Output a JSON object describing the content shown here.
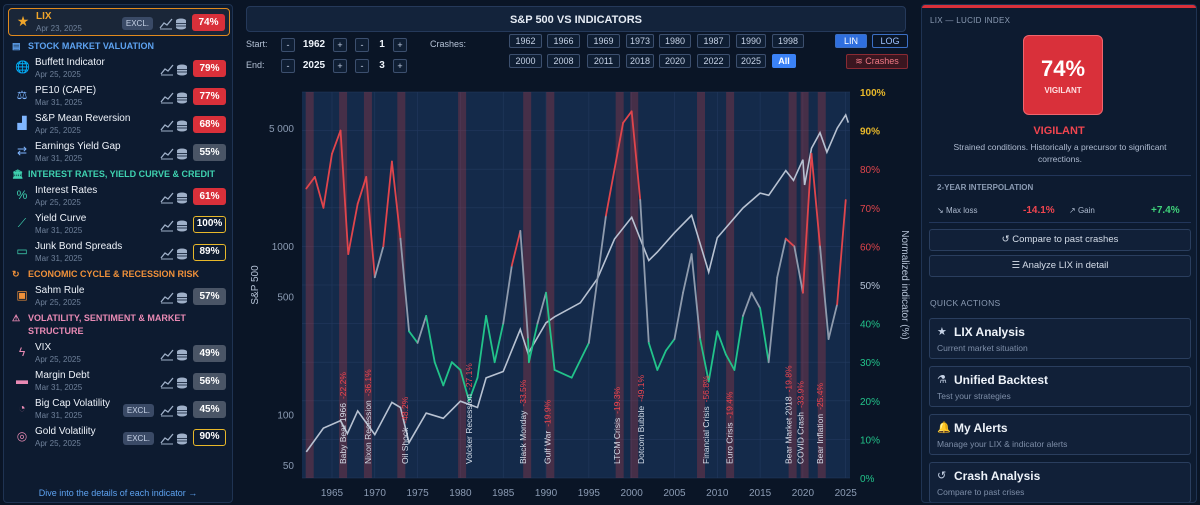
{
  "sidebar": {
    "lix": {
      "name": "LIX",
      "date": "Apr 23, 2025",
      "excl": "EXCL.",
      "value": "74%",
      "color": "red"
    },
    "sections": [
      {
        "title": "STOCK MARKET VALUATION",
        "color": "#5da2f0",
        "icon": "chart-bar-icon",
        "items": [
          {
            "name": "Buffett Indicator",
            "date": "Apr 25, 2025",
            "value": "79%",
            "color": "red",
            "icon": "globe-icon"
          },
          {
            "name": "PE10 (CAPE)",
            "date": "Mar 31, 2025",
            "value": "77%",
            "color": "red",
            "icon": "scale-icon"
          },
          {
            "name": "S&P Mean Reversion",
            "date": "Apr 25, 2025",
            "value": "68%",
            "color": "red",
            "icon": "area-chart-icon"
          },
          {
            "name": "Earnings Yield Gap",
            "date": "Mar 31, 2025",
            "value": "55%",
            "color": "gray",
            "icon": "arrows-swap-icon"
          }
        ]
      },
      {
        "title": "INTEREST RATES, YIELD CURVE & CREDIT",
        "color": "#3fd2b0",
        "icon": "bank-icon",
        "items": [
          {
            "name": "Interest Rates",
            "date": "Apr 25, 2025",
            "value": "61%",
            "color": "red",
            "icon": "percent-icon"
          },
          {
            "name": "Yield Curve",
            "date": "Mar 31, 2025",
            "value": "100%",
            "color": "yel",
            "icon": "line-chart-icon"
          },
          {
            "name": "Junk Bond Spreads",
            "date": "Mar 31, 2025",
            "value": "89%",
            "color": "yel",
            "icon": "money-icon"
          }
        ]
      },
      {
        "title": "ECONOMIC CYCLE & RECESSION RISK",
        "color": "#f0913a",
        "icon": "cycle-icon",
        "items": [
          {
            "name": "Sahm Rule",
            "date": "Apr 25, 2025",
            "value": "57%",
            "color": "gray",
            "icon": "briefcase-icon"
          }
        ]
      },
      {
        "title": "VOLATILITY, SENTIMENT & MARKET",
        "title2": "STRUCTURE",
        "color": "#e88ab4",
        "icon": "warning-icon",
        "items": [
          {
            "name": "VIX",
            "date": "Apr 25, 2025",
            "value": "49%",
            "color": "gray",
            "icon": "bolt-icon"
          },
          {
            "name": "Margin Debt",
            "date": "Mar 31, 2025",
            "value": "56%",
            "color": "gray",
            "icon": "credit-card-icon"
          },
          {
            "name": "Big Cap Volatility",
            "date": "Mar 31, 2025",
            "value": "45%",
            "color": "gray",
            "icon": "pie-icon",
            "excl": "EXCL."
          },
          {
            "name": "Gold Volatility",
            "date": "Apr 25, 2025",
            "value": "90%",
            "color": "yel",
            "icon": "coins-icon",
            "excl": "EXCL."
          }
        ]
      }
    ],
    "footer_link": "Dive into the details of each indicator →"
  },
  "chart_controls": {
    "title": "S&P 500 VS INDICATORS",
    "start_label": "Start:",
    "end_label": "End:",
    "start_year": "1962",
    "start_month": "1",
    "end_year": "2025",
    "end_month": "3",
    "crashes_label": "Crashes:",
    "crash_years_row1": [
      "1962",
      "1966",
      "1969",
      "1973",
      "1980",
      "1987",
      "1990",
      "1998"
    ],
    "crash_years_row2": [
      "2000",
      "2008",
      "2011",
      "2018",
      "2020",
      "2022",
      "2025",
      "All"
    ],
    "lin": "LIN",
    "log": "LOG",
    "crashes_button": "Crashes"
  },
  "chart_data": {
    "type": "line",
    "ylabel": "S&P 500",
    "y2label": "Normalized indicator (%)",
    "x_ticks": [
      "1965",
      "1970",
      "1975",
      "1980",
      "1985",
      "1990",
      "1995",
      "2000",
      "2005",
      "2010",
      "2015",
      "2020",
      "2025"
    ],
    "y_ticks_log": [
      "50",
      "100",
      "500",
      "1000",
      "5 000"
    ],
    "y2_ticks": [
      "0%",
      "10%",
      "20%",
      "30%",
      "40%",
      "50%",
      "60%",
      "70%",
      "80%",
      "90%",
      "100%"
    ],
    "xlim": [
      1961.5,
      2025.5
    ],
    "ylim_log": [
      42,
      8200
    ],
    "y2lim": [
      0,
      100
    ],
    "series": [
      {
        "values": [
          [
            1962,
            60
          ],
          [
            1964,
            83
          ],
          [
            1966,
            92
          ],
          [
            1966.8,
            77
          ],
          [
            1968,
            105
          ],
          [
            1970,
            76
          ],
          [
            1972,
            118
          ],
          [
            1973,
            110
          ],
          [
            1974,
            68
          ],
          [
            1976,
            102
          ],
          [
            1978,
            95
          ],
          [
            1980,
            120
          ],
          [
            1982,
            110
          ],
          [
            1983,
            165
          ],
          [
            1985,
            180
          ],
          [
            1987,
            320
          ],
          [
            1987.9,
            230
          ],
          [
            1990,
            350
          ],
          [
            1991,
            380
          ],
          [
            1994,
            460
          ],
          [
            1996,
            640
          ],
          [
            1998,
            1100
          ],
          [
            2000,
            1480
          ],
          [
            2002,
            820
          ],
          [
            2003,
            920
          ],
          [
            2005,
            1200
          ],
          [
            2007,
            1520
          ],
          [
            2009,
            700
          ],
          [
            2010,
            1120
          ],
          [
            2011,
            1280
          ],
          [
            2013,
            1680
          ],
          [
            2015,
            2060
          ],
          [
            2016,
            2000
          ],
          [
            2018,
            2800
          ],
          [
            2018.9,
            2450
          ],
          [
            2020,
            3250
          ],
          [
            2020.2,
            2300
          ],
          [
            2021,
            3800
          ],
          [
            2022,
            4700
          ],
          [
            2022.8,
            3600
          ],
          [
            2024,
            5000
          ],
          [
            2025,
            6000
          ],
          [
            2025.3,
            5400
          ]
        ]
      },
      {
        "values": [
          [
            1962,
            75
          ],
          [
            1963,
            78
          ],
          [
            1964,
            70
          ],
          [
            1965,
            84
          ],
          [
            1966,
            90
          ],
          [
            1966.9,
            58
          ],
          [
            1968,
            71
          ],
          [
            1969,
            78
          ],
          [
            1970,
            52
          ],
          [
            1971,
            60
          ],
          [
            1972,
            82
          ],
          [
            1973,
            62
          ],
          [
            1974,
            38
          ],
          [
            1975,
            35
          ],
          [
            1976,
            42
          ],
          [
            1977,
            30
          ],
          [
            1978,
            24
          ],
          [
            1979,
            30
          ],
          [
            1980,
            28
          ],
          [
            1981,
            20
          ],
          [
            1982,
            26
          ],
          [
            1983,
            42
          ],
          [
            1984,
            30
          ],
          [
            1985,
            40
          ],
          [
            1986,
            55
          ],
          [
            1987,
            64
          ],
          [
            1987.9,
            36
          ],
          [
            1988,
            30
          ],
          [
            1989,
            40
          ],
          [
            1990,
            48
          ],
          [
            1991,
            28
          ],
          [
            1993,
            26
          ],
          [
            1995,
            35
          ],
          [
            1997,
            68
          ],
          [
            1998,
            80
          ],
          [
            1999,
            92
          ],
          [
            2000,
            95
          ],
          [
            2001,
            72
          ],
          [
            2002,
            35
          ],
          [
            2003,
            28
          ],
          [
            2004,
            33
          ],
          [
            2005,
            36
          ],
          [
            2006,
            48
          ],
          [
            2007,
            58
          ],
          [
            2008,
            36
          ],
          [
            2009,
            25
          ],
          [
            2010,
            38
          ],
          [
            2011,
            32
          ],
          [
            2012,
            28
          ],
          [
            2013,
            42
          ],
          [
            2014,
            48
          ],
          [
            2015,
            44
          ],
          [
            2016,
            30
          ],
          [
            2017,
            52
          ],
          [
            2018,
            62
          ],
          [
            2019,
            60
          ],
          [
            2020,
            48
          ],
          [
            2021,
            84
          ],
          [
            2022,
            60
          ],
          [
            2023,
            36
          ],
          [
            2024,
            45
          ],
          [
            2025,
            72
          ]
        ]
      }
    ],
    "crash_bands": [
      1962.4,
      1966.3,
      1969.2,
      1973.1,
      1980.2,
      1987.8,
      1990.5,
      1998.6,
      2000.3,
      2008.1,
      2011.5,
      2018.8,
      2020.2,
      2022.2
    ],
    "annotations": [
      {
        "label": "Baby Bear 1966",
        "pct": "-22.2%",
        "x": 1966.3
      },
      {
        "label": "Nixon Recession",
        "pct": "-36.1%",
        "x": 1969.2
      },
      {
        "label": "Oil Shock",
        "pct": "-48.2%",
        "x": 1973.5
      },
      {
        "label": "Volcker Recession",
        "pct": "-27.1%",
        "x": 1981.0
      },
      {
        "label": "Black Monday",
        "pct": "-33.5%",
        "x": 1987.3
      },
      {
        "label": "Gulf War",
        "pct": "-19.9%",
        "x": 1990.2
      },
      {
        "label": "LTCM Crisis",
        "pct": "-19.3%",
        "x": 1998.3
      },
      {
        "label": "Dotcom Bubble",
        "pct": "-49.1%",
        "x": 2001.1
      },
      {
        "label": "Financial Crisis",
        "pct": "-56.8%",
        "x": 2008.7
      },
      {
        "label": "Euro Crisis",
        "pct": "-19.4%",
        "x": 2011.4
      },
      {
        "label": "Bear Market 2018",
        "pct": "-19.8%",
        "x": 2018.3
      },
      {
        "label": "COVID Crash",
        "pct": "-33.9%",
        "x": 2019.7
      },
      {
        "label": "Bear Inflation",
        "pct": "-25.4%",
        "x": 2022.0
      }
    ]
  },
  "right_panel": {
    "header": "LIX — LUCID INDEX",
    "value": "74%",
    "value_label": "VIGILANT",
    "status": "VIGILANT",
    "description": "Strained conditions. Historically a precursor to significant corrections.",
    "interp_title": "2-YEAR INTERPOLATION",
    "max_loss_label": "Max loss",
    "max_loss": "-14.1%",
    "gain_label": "Gain",
    "gain": "+7.4%",
    "compare_button": "Compare to past crashes",
    "analyze_button": "Analyze LIX in detail",
    "quick_actions_title": "QUICK ACTIONS",
    "quick_actions": [
      {
        "title": "LIX Analysis",
        "subtitle": "Current market situation",
        "icon": "star-icon"
      },
      {
        "title": "Unified Backtest",
        "subtitle": "Test your strategies",
        "icon": "flask-icon"
      },
      {
        "title": "My Alerts",
        "subtitle": "Manage your LIX & indicator alerts",
        "icon": "bell-icon"
      },
      {
        "title": "Crash Analysis",
        "subtitle": "Compare to past crises",
        "icon": "history-icon"
      }
    ]
  },
  "colors": {
    "red": "#d9303a",
    "gray": "#4a5566",
    "yellow": "#e8b82a",
    "accent": "#3b82f6",
    "line_red": "#e0454c",
    "line_green": "#22c38a",
    "line_gray": "#8f9bad"
  }
}
